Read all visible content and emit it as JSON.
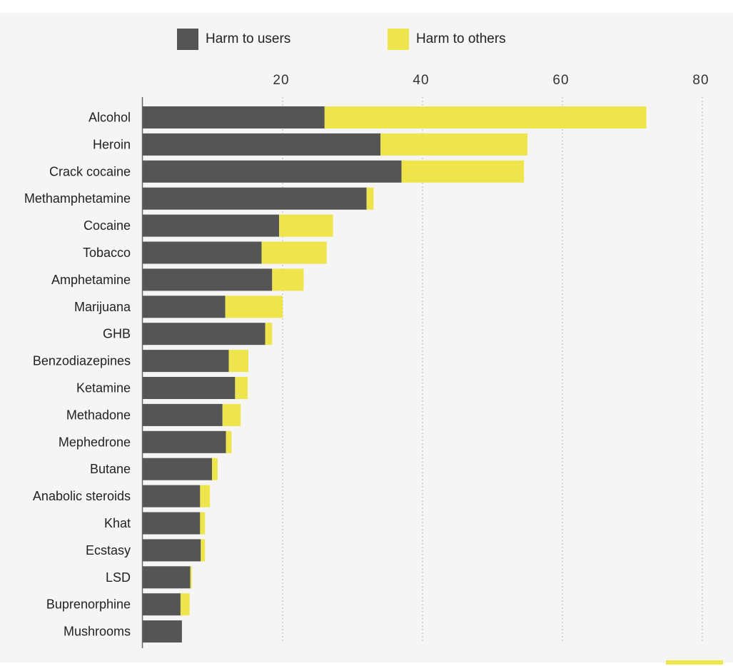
{
  "chart_data": {
    "type": "bar",
    "orientation": "horizontal",
    "stacked": true,
    "categories": [
      "Alcohol",
      "Heroin",
      "Crack cocaine",
      "Methamphetamine",
      "Cocaine",
      "Tobacco",
      "Amphetamine",
      "Marijuana",
      "GHB",
      "Benzodiazepines",
      "Ketamine",
      "Methadone",
      "Mephedrone",
      "Butane",
      "Anabolic steroids",
      "Khat",
      "Ecstasy",
      "LSD",
      "Buprenorphine",
      "Mushrooms"
    ],
    "series": [
      {
        "name": "Harm to users",
        "color": "#555555",
        "values": [
          26,
          34,
          37,
          32,
          19.5,
          17,
          18.5,
          11.8,
          17.5,
          12.3,
          13.2,
          11.4,
          11.9,
          9.9,
          8.2,
          8.2,
          8.3,
          6.8,
          5.4,
          5.6
        ]
      },
      {
        "name": "Harm to others",
        "color": "#ede54b",
        "values": [
          46,
          21,
          17.5,
          1,
          7.7,
          9.3,
          4.5,
          8.2,
          1,
          2.8,
          1.8,
          2.6,
          0.8,
          0.8,
          1.4,
          0.7,
          0.6,
          0.2,
          1.3,
          0
        ]
      }
    ],
    "xlim": [
      0,
      80
    ],
    "xticks": [
      "20",
      "40",
      "60",
      "80"
    ],
    "xlabel": "",
    "ylabel": "",
    "grid": "vertical dotted",
    "legend": "top"
  }
}
